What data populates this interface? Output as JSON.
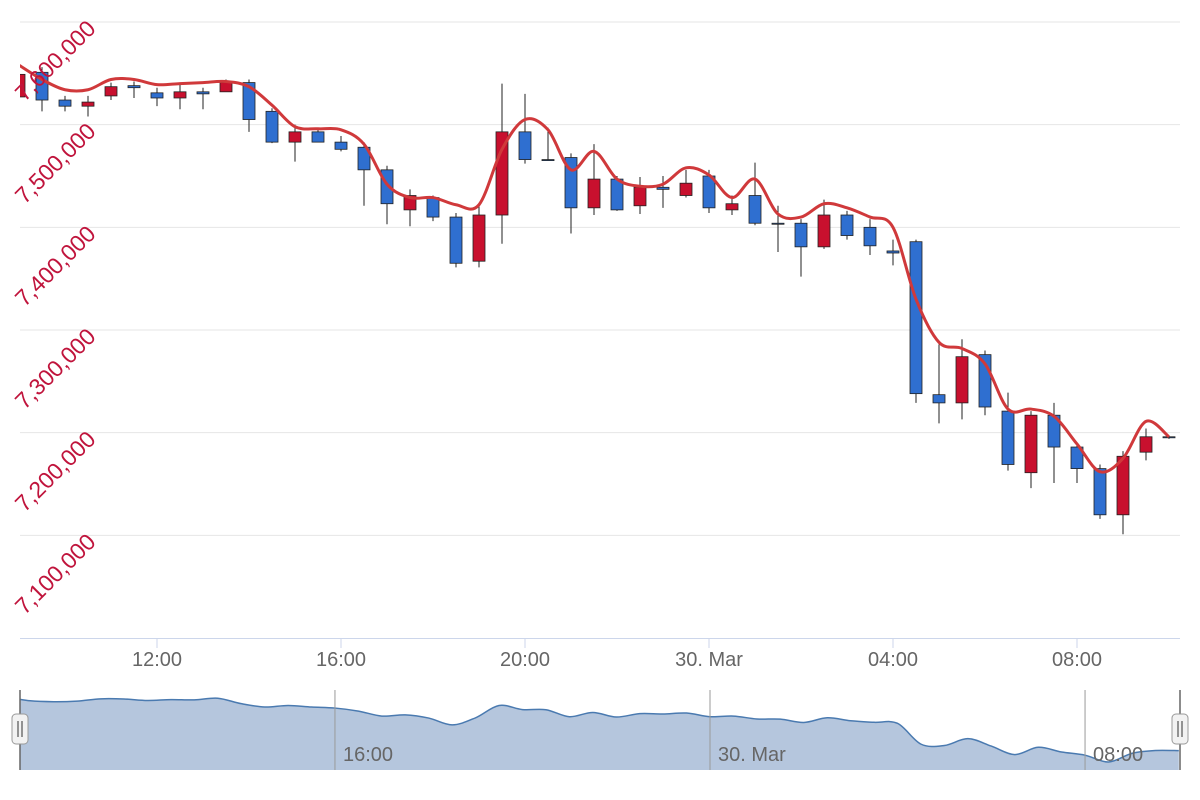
{
  "chart_data": {
    "type": "candlestick",
    "categories": [
      null,
      null,
      null,
      null,
      null,
      null,
      "12:00",
      null,
      null,
      null,
      null,
      null,
      null,
      null,
      "16:00",
      null,
      null,
      null,
      null,
      null,
      null,
      null,
      "20:00",
      null,
      null,
      null,
      null,
      null,
      null,
      null,
      "30. Mar",
      null,
      null,
      null,
      null,
      null,
      null,
      null,
      "04:00",
      null,
      null,
      null,
      null,
      null,
      null,
      null,
      "08:00",
      null,
      null,
      null,
      null
    ],
    "open": [
      7527000,
      7551000,
      7524000,
      7518000,
      7528000,
      7538000,
      7531000,
      7526000,
      7532000,
      7532000,
      7541000,
      7513000,
      7483000,
      7493000,
      7483000,
      7478000,
      7456000,
      7417000,
      7429000,
      7410000,
      7367000,
      7412000,
      7493000,
      7466000,
      7468000,
      7419000,
      7447000,
      7421000,
      7439000,
      7431000,
      7450000,
      7417000,
      7431000,
      7404000,
      7404000,
      7381000,
      7412000,
      7400000,
      7377000,
      7386000,
      7237000,
      7229000,
      7276000,
      7221000,
      7161000,
      7217000,
      7186000,
      7165000,
      7120000,
      7181000,
      7196000
    ],
    "high": [
      7558000,
      7556000,
      7528000,
      7528000,
      7541000,
      7542000,
      7536000,
      7540000,
      7536000,
      7544000,
      7544000,
      7516000,
      7500000,
      7495000,
      7489000,
      7483000,
      7460000,
      7437000,
      7431000,
      7414000,
      7421000,
      7540000,
      7530000,
      7497000,
      7472000,
      7481000,
      7450000,
      7449000,
      7450000,
      7456000,
      7456000,
      7431000,
      7463000,
      7421000,
      7408000,
      7427000,
      7416000,
      7408000,
      7388000,
      7388000,
      7286000,
      7291000,
      7280000,
      7239000,
      7221000,
      7229000,
      7188000,
      7169000,
      7182000,
      7204000,
      7197000
    ],
    "low": [
      7515000,
      7513000,
      7513000,
      7508000,
      7524000,
      7526000,
      7518000,
      7515000,
      7515000,
      7532000,
      7493000,
      7482000,
      7464000,
      7483000,
      7474000,
      7421000,
      7403000,
      7401000,
      7406000,
      7361000,
      7361000,
      7384000,
      7462000,
      7465000,
      7394000,
      7412000,
      7416000,
      7413000,
      7419000,
      7429000,
      7414000,
      7412000,
      7402000,
      7376000,
      7352000,
      7379000,
      7388000,
      7373000,
      7363000,
      7229000,
      7209000,
      7213000,
      7217000,
      7163000,
      7146000,
      7151000,
      7151000,
      7116000,
      7101000,
      7173000,
      7194000
    ],
    "close": [
      7549000,
      7524000,
      7518000,
      7522000,
      7537000,
      7536000,
      7526000,
      7532000,
      7530000,
      7541000,
      7505000,
      7483000,
      7493000,
      7483000,
      7476000,
      7456000,
      7423000,
      7431000,
      7410000,
      7365000,
      7412000,
      7493000,
      7466000,
      7465000,
      7419000,
      7447000,
      7417000,
      7439000,
      7437000,
      7443000,
      7419000,
      7423000,
      7404000,
      7403000,
      7381000,
      7412000,
      7392000,
      7382000,
      7375000,
      7238000,
      7229000,
      7274000,
      7225000,
      7169000,
      7217000,
      7186000,
      7165000,
      7120000,
      7177000,
      7196000,
      7195000
    ],
    "up_color": "#c8102e",
    "down_color": "#2f6fd0",
    "line": {
      "color": "#d0393b",
      "values": [
        7558000,
        7544000,
        7534000,
        7534000,
        7544000,
        7544000,
        7539000,
        7540000,
        7541000,
        7542000,
        7537000,
        7519000,
        7498000,
        7496000,
        7495000,
        7481000,
        7442000,
        7429000,
        7429000,
        7422000,
        7422000,
        7476000,
        7505000,
        7495000,
        7456000,
        7474000,
        7447000,
        7440000,
        7442000,
        7458000,
        7451000,
        7429000,
        7447000,
        7413000,
        7410000,
        7423000,
        7419000,
        7410000,
        7400000,
        7330000,
        7288000,
        7282000,
        7267000,
        7223000,
        7223000,
        7216000,
        7189000,
        7162000,
        7175000,
        7211000,
        7196000
      ]
    },
    "ylim": [
      7000000,
      7600000
    ],
    "yticks": [
      {
        "value": 7100000,
        "label": "7,100,000"
      },
      {
        "value": 7200000,
        "label": "7,200,000"
      },
      {
        "value": 7300000,
        "label": "7,300,000"
      },
      {
        "value": 7400000,
        "label": "7,400,000"
      },
      {
        "value": 7500000,
        "label": "7,500,000"
      },
      {
        "value": 7600000,
        "label": "7,600,000"
      }
    ],
    "grid": true,
    "navigator": {
      "color": "#b5c6dd",
      "line_color": "#4a7ab0",
      "xticks": [
        "16:00",
        "30. Mar",
        "08:00"
      ]
    }
  }
}
